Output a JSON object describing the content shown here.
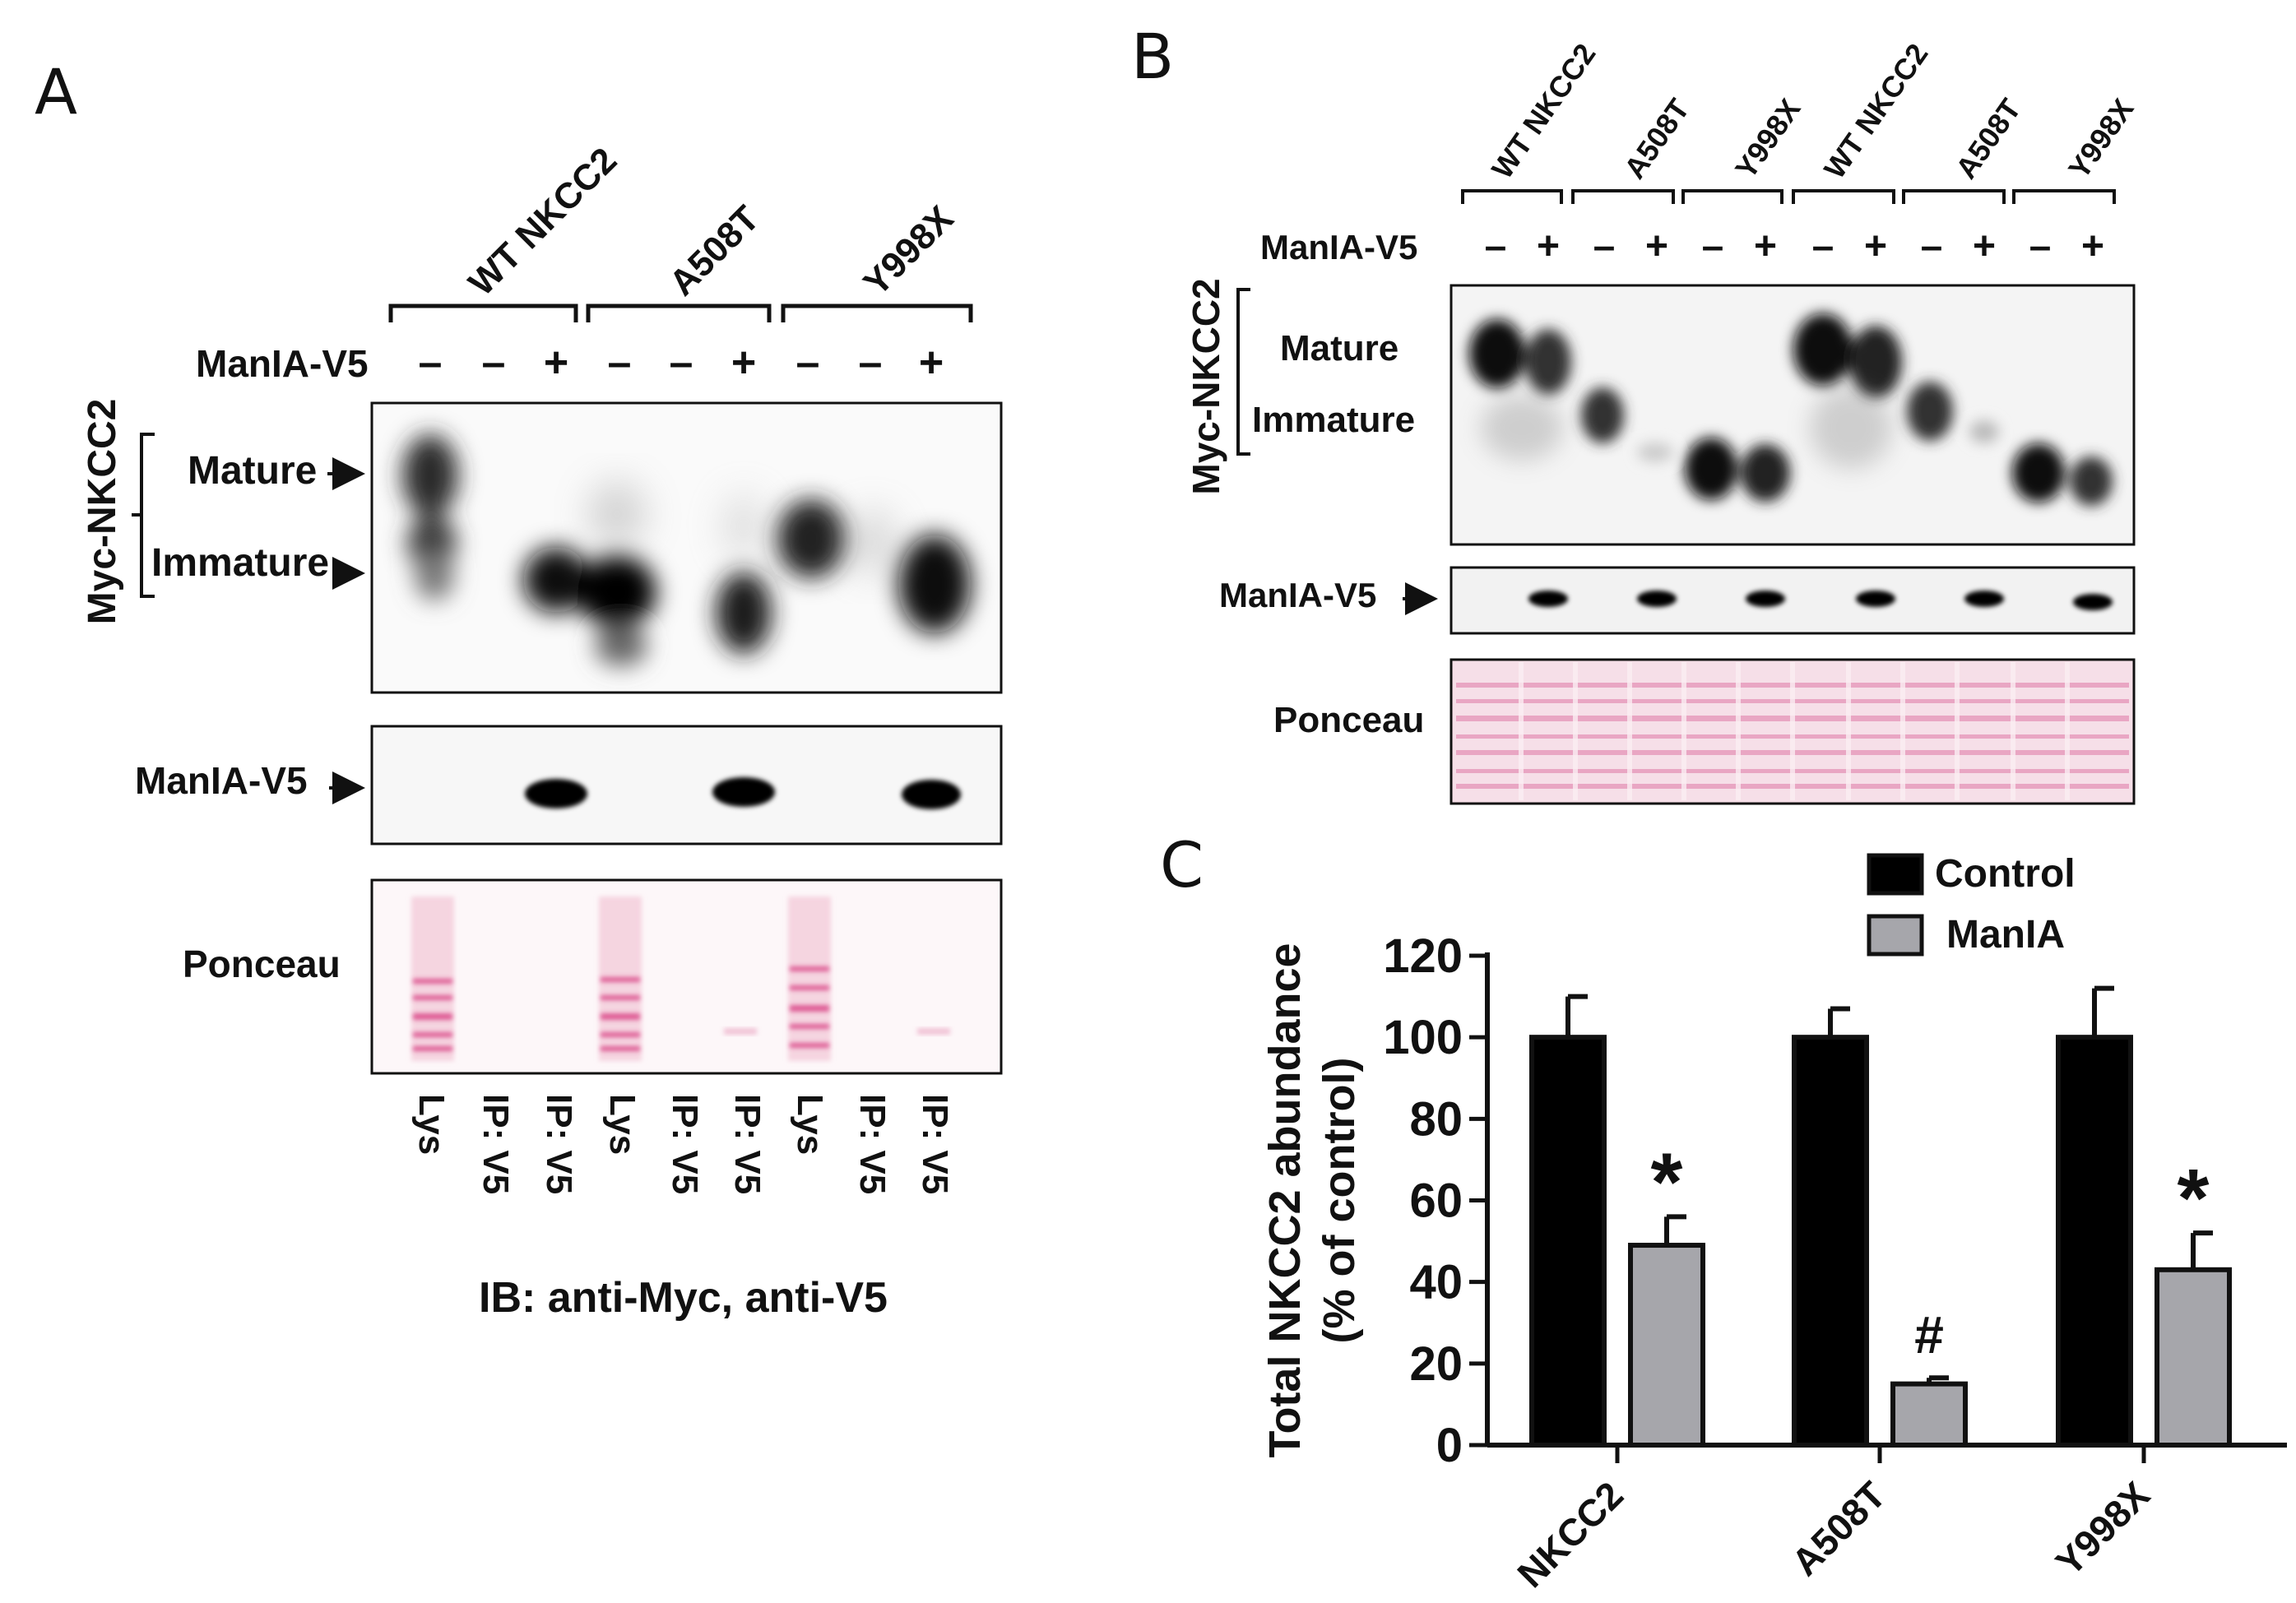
{
  "panel_a": {
    "letter": "A",
    "groups": [
      "WT NKCC2",
      "A508T",
      "Y998X"
    ],
    "manla_row_label": "ManIA-V5",
    "manla_signs": [
      "–",
      "–",
      "+",
      "–",
      "–",
      "+",
      "–",
      "–",
      "+"
    ],
    "myc_label": "Myc-NKCC2",
    "mature_label": "Mature",
    "immature_label": "Immature",
    "manla_blot_label": "ManIA-V5",
    "ponceau_label": "Ponceau",
    "lane_labels": [
      "Lys",
      "IP: V5",
      "IP: V5",
      "Lys",
      "IP: V5",
      "IP: V5",
      "Lys",
      "IP: V5",
      "IP: V5"
    ],
    "ib_label": "IB: anti-Myc, anti-V5"
  },
  "panel_b": {
    "letter": "B",
    "groups": [
      "WT NKCC2",
      "A508T",
      "Y998X",
      "WT NKCC2",
      "A508T",
      "Y998X"
    ],
    "manla_row_label": "ManIA-V5",
    "manla_signs": [
      "–",
      "+",
      "–",
      "+",
      "–",
      "+",
      "–",
      "+",
      "–",
      "+",
      "–",
      "+"
    ],
    "myc_label": "Myc-NKCC2",
    "mature_label": "Mature",
    "immature_label": "Immature",
    "manla_blot_label": "ManIA-V5",
    "ponceau_label": "Ponceau"
  },
  "chart_data": {
    "type": "bar",
    "panel_letter": "C",
    "categories": [
      "NKCC2",
      "A508T",
      "Y998X"
    ],
    "series": [
      {
        "name": "Control",
        "color": "#000000",
        "values": [
          100,
          100,
          100
        ],
        "errors": [
          10,
          7,
          12
        ]
      },
      {
        "name": "ManIA",
        "color": "#a6a6ab",
        "values": [
          49,
          15,
          43
        ],
        "errors": [
          7,
          1.5,
          9
        ]
      }
    ],
    "annotations": [
      "*",
      "#",
      "*"
    ],
    "ylabel_line1": "Total NKCC2 abundance",
    "ylabel_line2": "(% of control)",
    "ylim": [
      0,
      120
    ],
    "yticks": [
      0,
      20,
      40,
      60,
      80,
      100,
      120
    ],
    "legend_position": "top"
  }
}
